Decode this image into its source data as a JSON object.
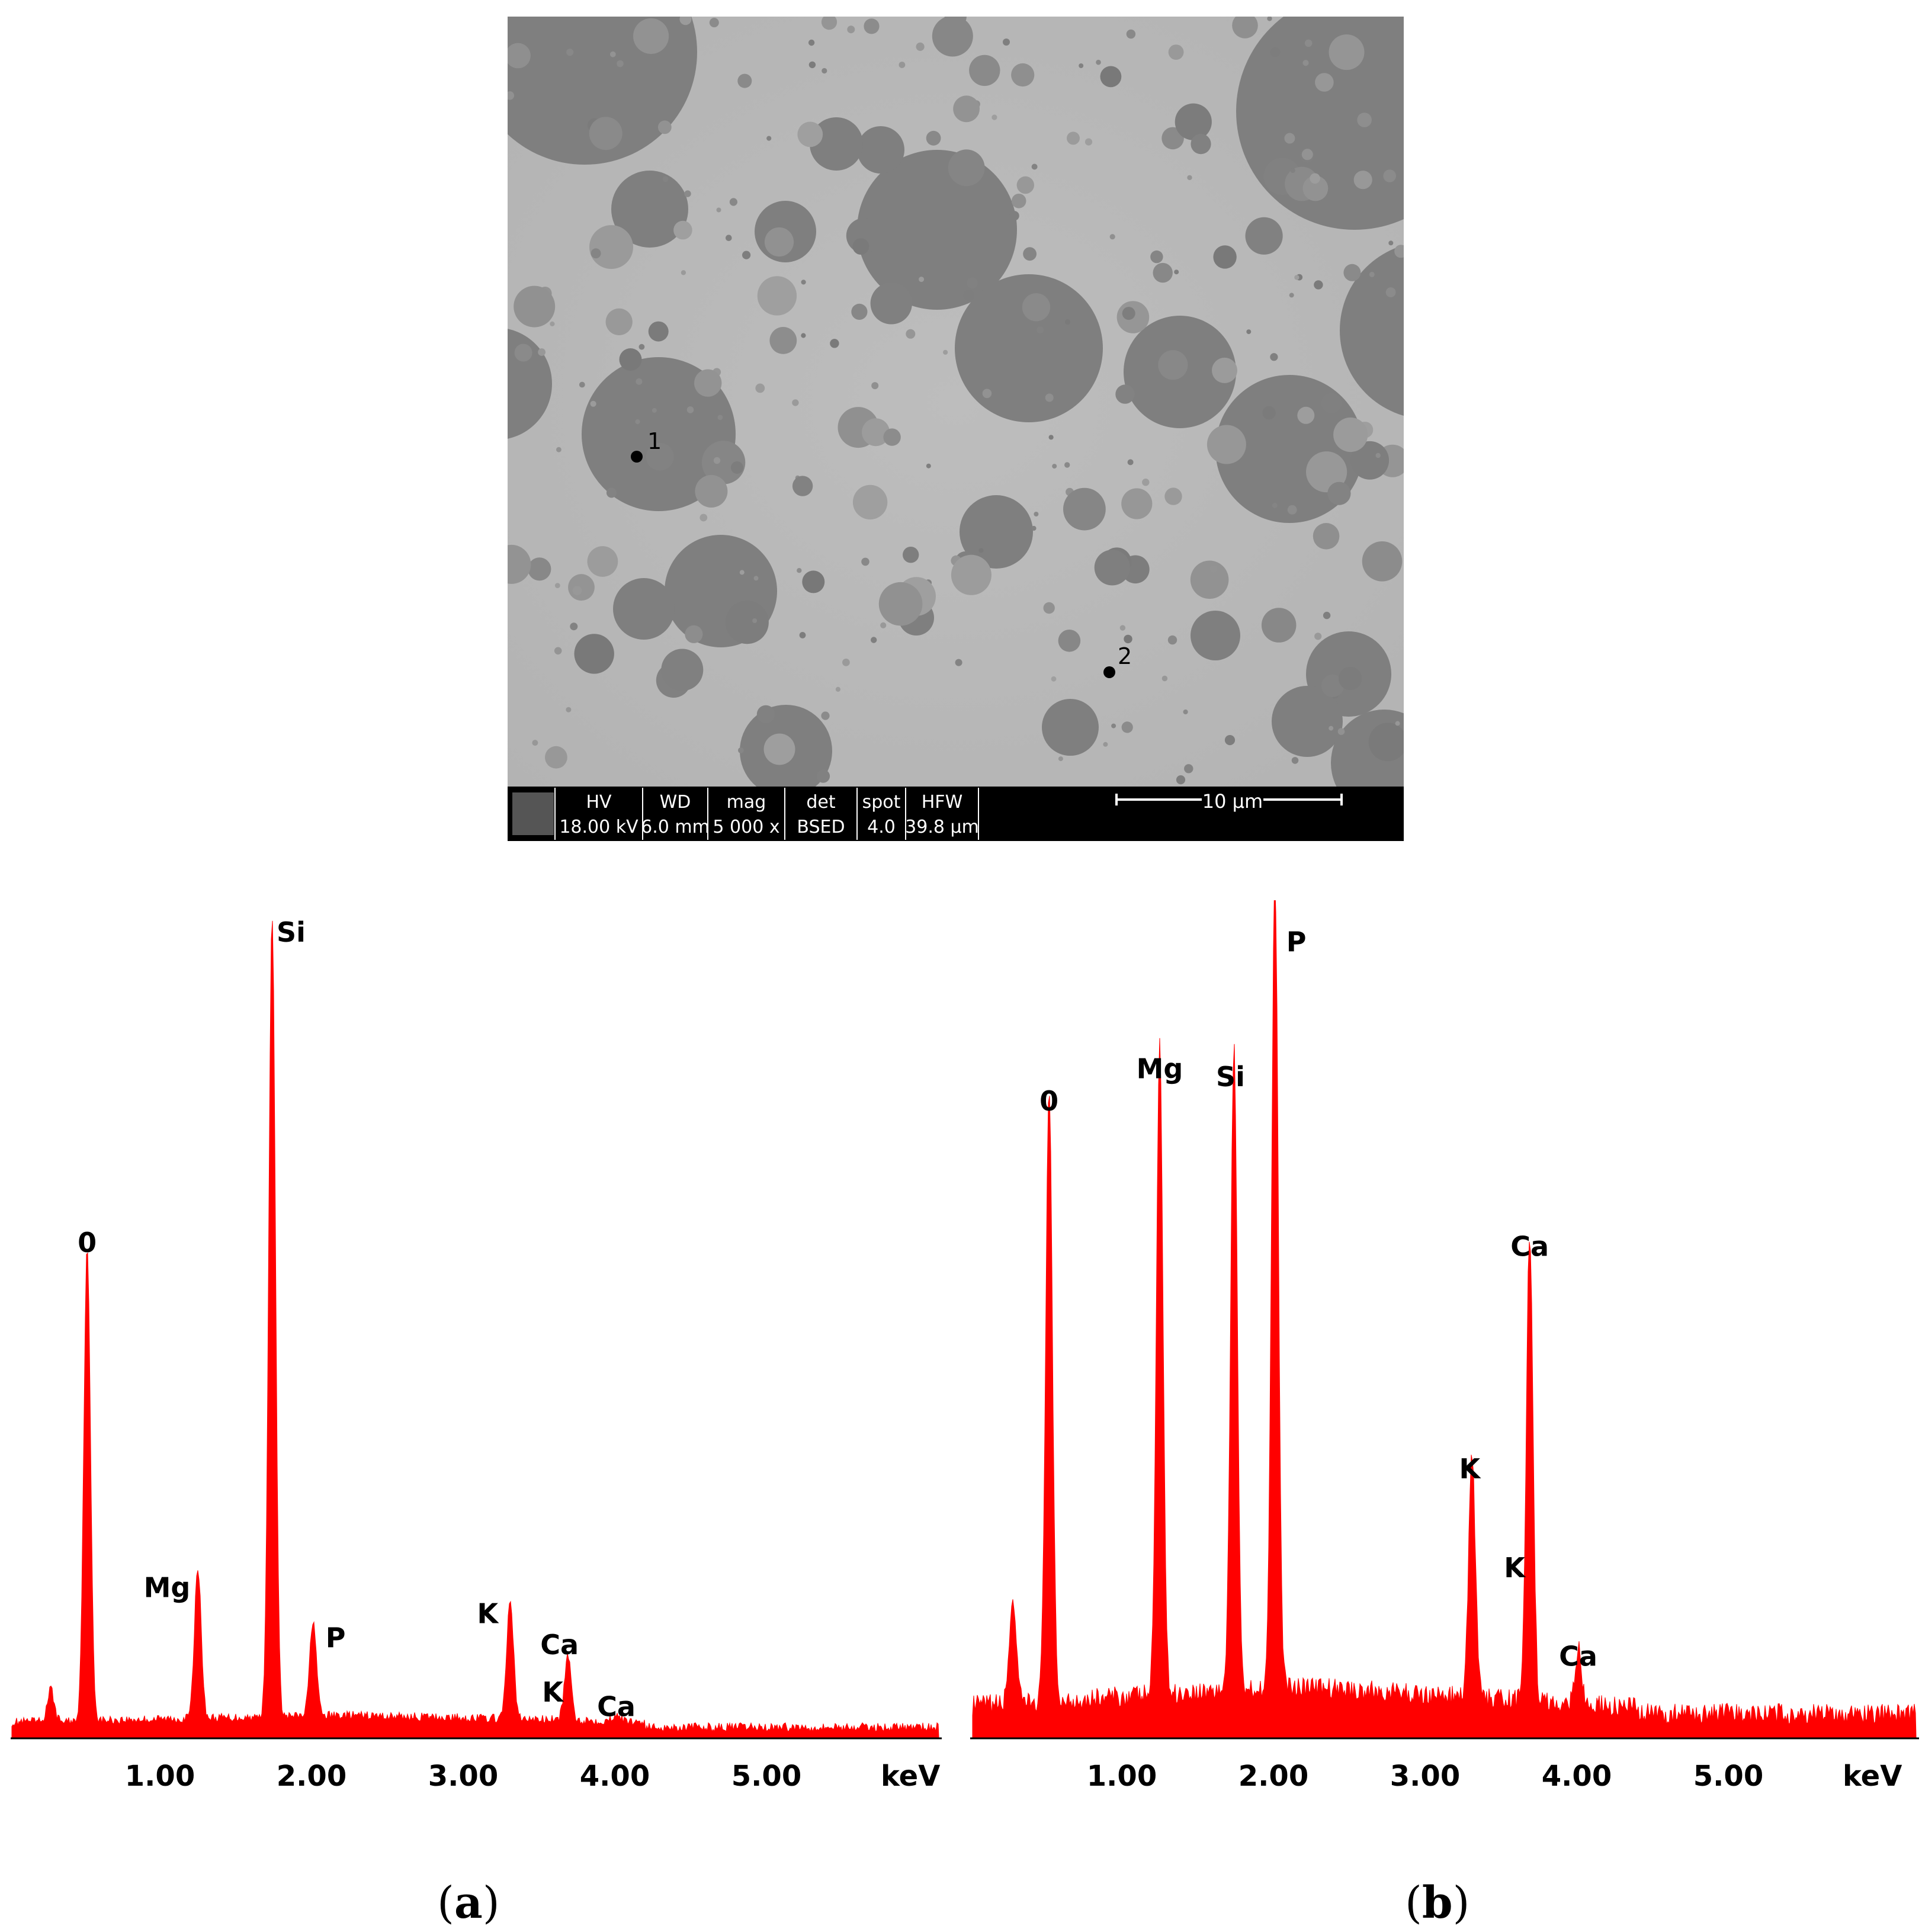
{
  "sem_image": {
    "points": [
      "1",
      "2"
    ],
    "databar": {
      "headers": [
        "HV",
        "WD",
        "mag",
        "det",
        "spot",
        "HFW"
      ],
      "values": [
        "18.00 kV",
        "6.0 mm",
        "5 000 x",
        "BSED",
        "4.0",
        "39.8 µm"
      ],
      "scale_bar": "10 µm"
    }
  },
  "captions": {
    "a": "a",
    "b": "b"
  },
  "colors": {
    "spectrum": "#ff0000",
    "axis": "#000000",
    "sem_background": "#b8b8b8",
    "sem_particle": "#7e7e7e"
  },
  "chart_data": [
    {
      "type": "area",
      "panel": "a",
      "xlabel": "keV",
      "xticks": [
        "1.00",
        "2.00",
        "3.00",
        "4.00",
        "5.00"
      ],
      "xlim": [
        0,
        6.0
      ],
      "ylim": [
        0,
        100
      ],
      "peaks": [
        {
          "label": "",
          "energy": 0.28,
          "height": 4
        },
        {
          "label": "0",
          "energy": 0.52,
          "height": 59
        },
        {
          "label": "Mg",
          "energy": 1.25,
          "height": 19
        },
        {
          "label": "Si",
          "energy": 1.74,
          "height": 100
        },
        {
          "label": "P",
          "energy": 2.01,
          "height": 12
        },
        {
          "label": "K",
          "energy": 3.31,
          "height": 15
        },
        {
          "label": "Ca",
          "energy": 3.69,
          "height": 8
        },
        {
          "label": "K",
          "energy": 3.59,
          "height": 0
        },
        {
          "label": "Ca",
          "energy": 4.01,
          "height": 1
        }
      ]
    },
    {
      "type": "area",
      "panel": "b",
      "xlabel": "keV",
      "xticks": [
        "1.00",
        "2.00",
        "3.00",
        "4.00",
        "5.00"
      ],
      "xlim": [
        0,
        6.0
      ],
      "ylim": [
        0,
        100
      ],
      "peaks": [
        {
          "label": "",
          "energy": 0.28,
          "height": 13
        },
        {
          "label": "0",
          "energy": 0.52,
          "height": 76
        },
        {
          "label": "Mg",
          "energy": 1.25,
          "height": 80
        },
        {
          "label": "Si",
          "energy": 1.74,
          "height": 79
        },
        {
          "label": "P",
          "energy": 2.01,
          "height": 100
        },
        {
          "label": "K",
          "energy": 3.31,
          "height": 30
        },
        {
          "label": "K",
          "energy": 3.59,
          "height": 0
        },
        {
          "label": "Ca",
          "energy": 3.69,
          "height": 58
        },
        {
          "label": "Ca",
          "energy": 4.01,
          "height": 7
        }
      ]
    }
  ]
}
